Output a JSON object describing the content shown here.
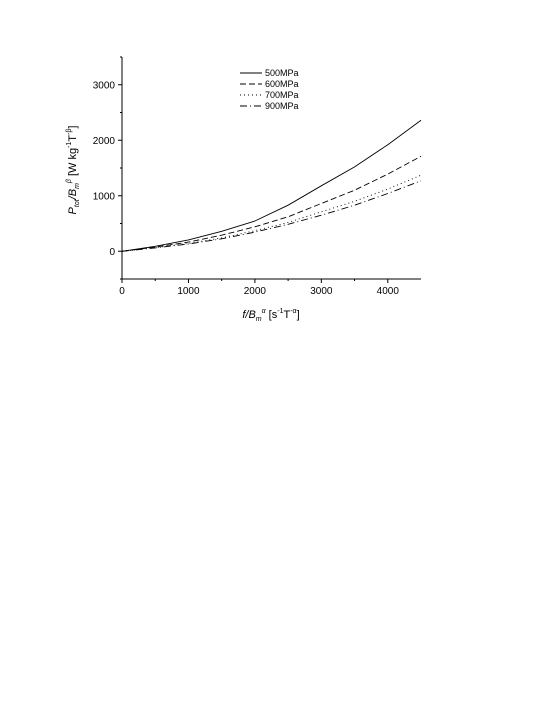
{
  "chart_data": {
    "type": "line",
    "xlabel": "f/B_m^α [s^-1 T^-α]",
    "ylabel": "P_tot/B_m^β [W kg^-1 T^-β]",
    "xlim": [
      0,
      4500
    ],
    "ylim": [
      -500,
      3500
    ],
    "xticks": [
      "0",
      "1000",
      "2000",
      "3000",
      "4000"
    ],
    "yticks": [
      "0",
      "1000",
      "2000",
      "3000"
    ],
    "grid": false,
    "legend_position": "top-center",
    "x": [
      0,
      500,
      1000,
      1500,
      2000,
      2500,
      3000,
      3500,
      4000,
      4500
    ],
    "series": [
      {
        "name": "500MPa",
        "style": "solid",
        "values": [
          0,
          90,
          205,
          360,
          545,
          830,
          1180,
          1520,
          1920,
          2360
        ]
      },
      {
        "name": "600MPa",
        "style": "dashed",
        "values": [
          0,
          75,
          165,
          290,
          440,
          620,
          860,
          1100,
          1390,
          1710
        ]
      },
      {
        "name": "700MPa",
        "style": "dotted",
        "values": [
          0,
          65,
          140,
          240,
          370,
          520,
          710,
          900,
          1120,
          1370
        ]
      },
      {
        "name": "900MPa",
        "style": "dashdot",
        "values": [
          0,
          60,
          130,
          225,
          345,
          485,
          650,
          830,
          1040,
          1270
        ]
      }
    ]
  },
  "axis_text": {
    "x_main": "f/B",
    "x_sub": "m",
    "x_sup": "α",
    "x_units": " [s",
    "x_units_sup1": "-1",
    "x_units_mid": "T",
    "x_units_sup2": "-α",
    "x_units_end": "]",
    "y_main": "P",
    "y_sub1": "tot",
    "y_mid": "/B",
    "y_sub2": "m",
    "y_sup": "β",
    "y_units": " [W kg",
    "y_units_sup1": "-1",
    "y_units_mid": "T",
    "y_units_sup2": "-β",
    "y_units_end": "]"
  }
}
